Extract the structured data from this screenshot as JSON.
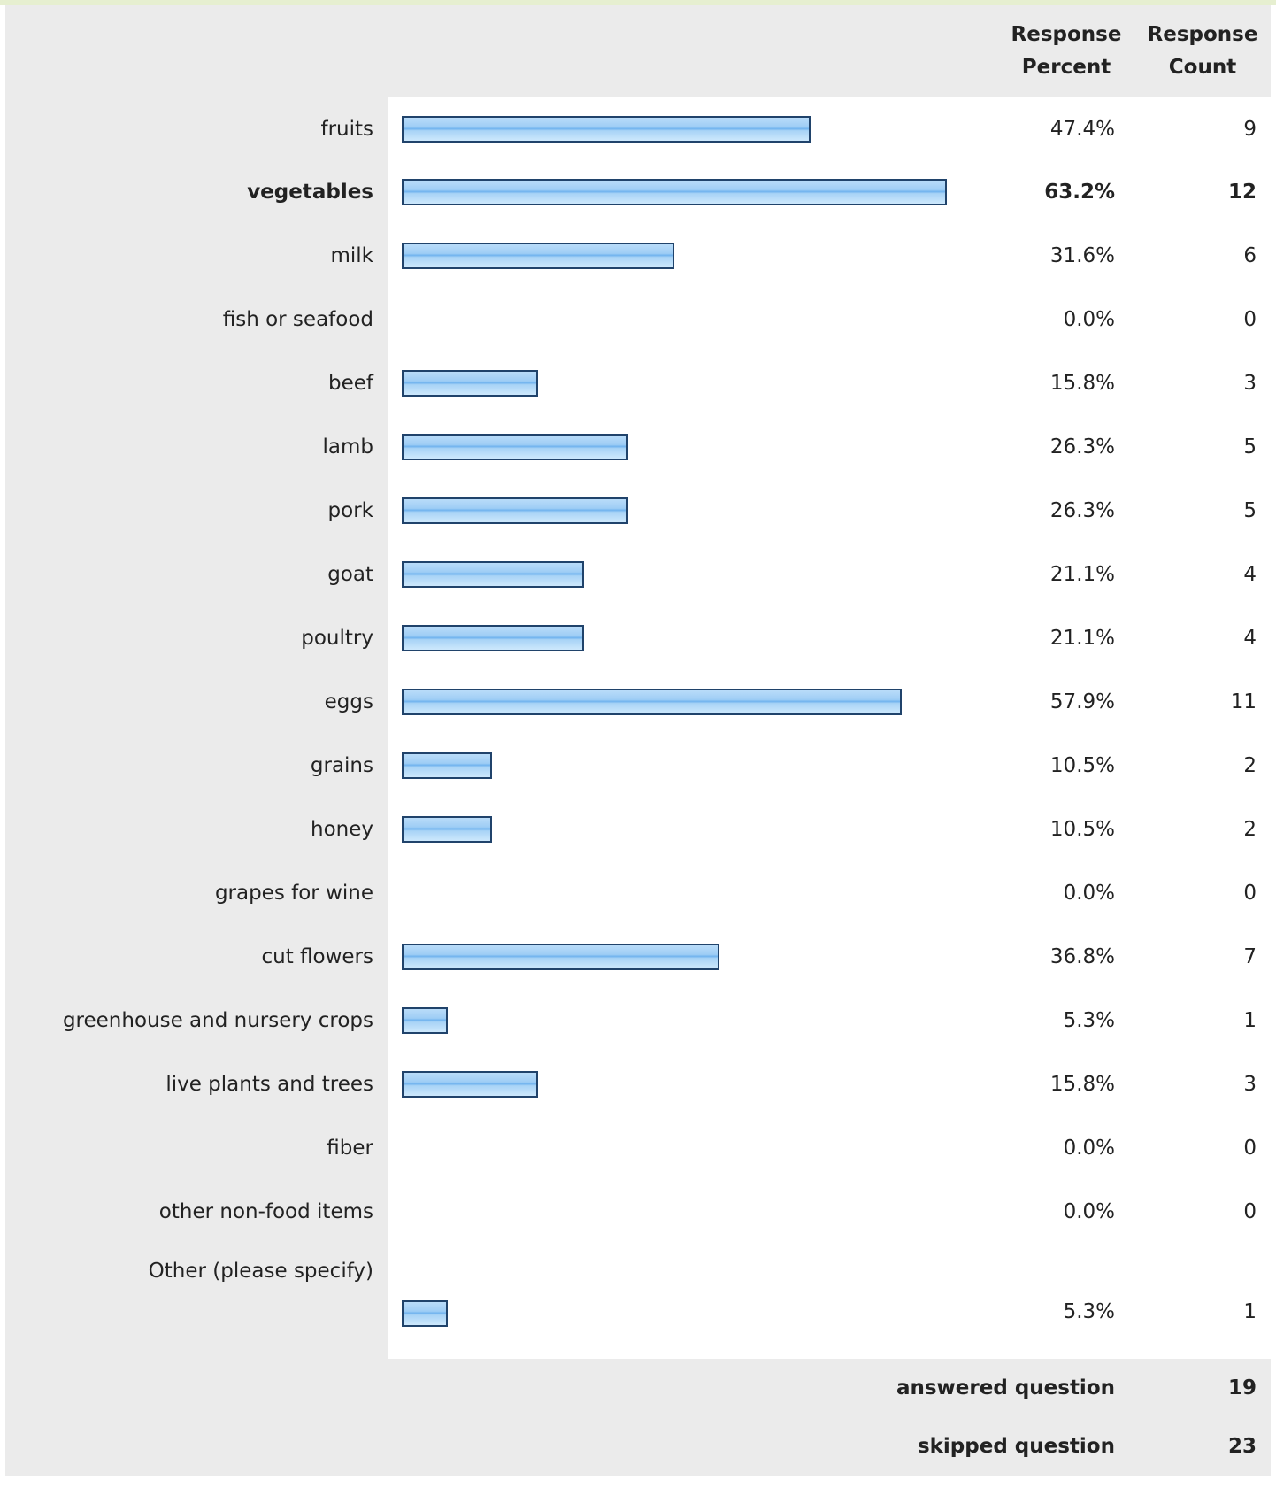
{
  "header": {
    "percent_label_line1": "Response",
    "percent_label_line2": "Percent",
    "count_label_line1": "Response",
    "count_label_line2": "Count"
  },
  "colors": {
    "bar_fill": "#9ecdf5",
    "bar_border": "#20436b",
    "label_background": "#ebebeb",
    "row_divider": "#d9d9d9"
  },
  "chart_data": {
    "type": "bar",
    "orientation": "horizontal",
    "xlim": [
      0,
      100
    ],
    "categories": [
      "fruits",
      "vegetables",
      "milk",
      "fish or seafood",
      "beef",
      "lamb",
      "pork",
      "goat",
      "poultry",
      "eggs",
      "grains",
      "honey",
      "grapes for wine",
      "cut flowers",
      "greenhouse and nursery crops",
      "live plants and trees",
      "fiber",
      "other non-food items",
      "Other (please specify)"
    ],
    "rows": [
      {
        "label": "fruits",
        "percent": 47.4,
        "percent_text": "47.4%",
        "count": "9"
      },
      {
        "label": "vegetables",
        "percent": 63.2,
        "percent_text": "63.2%",
        "count": "12",
        "bold": true
      },
      {
        "label": "milk",
        "percent": 31.6,
        "percent_text": "31.6%",
        "count": "6"
      },
      {
        "label": "fish or seafood",
        "percent": 0.0,
        "percent_text": "0.0%",
        "count": "0"
      },
      {
        "label": "beef",
        "percent": 15.8,
        "percent_text": "15.8%",
        "count": "3"
      },
      {
        "label": "lamb",
        "percent": 26.3,
        "percent_text": "26.3%",
        "count": "5"
      },
      {
        "label": "pork",
        "percent": 26.3,
        "percent_text": "26.3%",
        "count": "5"
      },
      {
        "label": "goat",
        "percent": 21.1,
        "percent_text": "21.1%",
        "count": "4"
      },
      {
        "label": "poultry",
        "percent": 21.1,
        "percent_text": "21.1%",
        "count": "4"
      },
      {
        "label": "eggs",
        "percent": 57.9,
        "percent_text": "57.9%",
        "count": "11"
      },
      {
        "label": "grains",
        "percent": 10.5,
        "percent_text": "10.5%",
        "count": "2"
      },
      {
        "label": "honey",
        "percent": 10.5,
        "percent_text": "10.5%",
        "count": "2"
      },
      {
        "label": "grapes for wine",
        "percent": 0.0,
        "percent_text": "0.0%",
        "count": "0"
      },
      {
        "label": "cut flowers",
        "percent": 36.8,
        "percent_text": "36.8%",
        "count": "7"
      },
      {
        "label": "greenhouse and nursery crops",
        "percent": 5.3,
        "percent_text": "5.3%",
        "count": "1"
      },
      {
        "label": "live plants and trees",
        "percent": 15.8,
        "percent_text": "15.8%",
        "count": "3"
      },
      {
        "label": "fiber",
        "percent": 0.0,
        "percent_text": "0.0%",
        "count": "0"
      },
      {
        "label": "other non-food items",
        "percent": 0.0,
        "percent_text": "0.0%",
        "count": "0"
      },
      {
        "label": "Other (please specify)",
        "percent": 5.3,
        "percent_text": "5.3%",
        "count": "1"
      }
    ]
  },
  "summary": {
    "answered_label": "answered question",
    "answered_value": "19",
    "skipped_label": "skipped question",
    "skipped_value": "23"
  }
}
